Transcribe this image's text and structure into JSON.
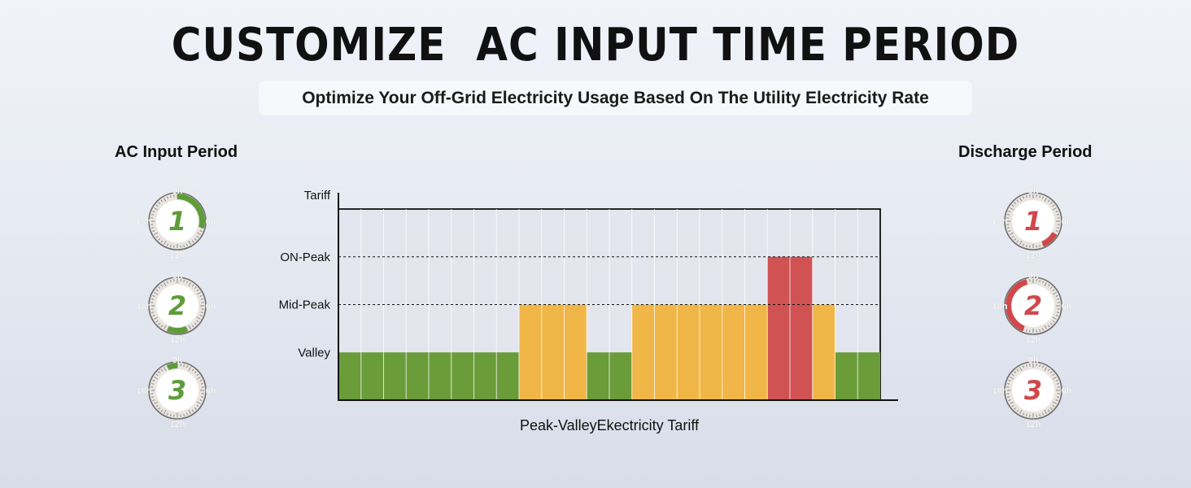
{
  "header": {
    "title": "CUSTOMIZE  AC INPUT TIME PERIOD",
    "subtitle": "Optimize Your Off-Grid Electricity Usage Based On The Utility Electricity Rate"
  },
  "left_panel": {
    "title": "AC Input Period",
    "color": "#5e9c3a",
    "dials": [
      {
        "number": "1",
        "labels": [
          "0h",
          "6h",
          "12h",
          "18h"
        ],
        "arc_hours": [
          0,
          7
        ]
      },
      {
        "number": "2",
        "labels": [
          "0h",
          "6h",
          "12h",
          "18h"
        ],
        "arc_hours": [
          10.5,
          13.5
        ]
      },
      {
        "number": "3",
        "labels": [
          "0h",
          "6h",
          "12h",
          "18h"
        ],
        "arc_hours": [
          22.5,
          24
        ]
      }
    ]
  },
  "right_panel": {
    "title": "Discharge Period",
    "color": "#d0484a",
    "dials": [
      {
        "number": "1",
        "labels": [
          "0h",
          "6h",
          "12h",
          "18h"
        ],
        "arc_hours": [
          8,
          10.5
        ]
      },
      {
        "number": "2",
        "labels": [
          "0h",
          "6h",
          "12h",
          "18h"
        ],
        "arc_hours": [
          13.5,
          23
        ]
      },
      {
        "number": "3",
        "labels": [
          "0h",
          "6h",
          "12h",
          "18h"
        ],
        "arc_hours": [
          0,
          0
        ]
      }
    ]
  },
  "chart_data": {
    "type": "bar",
    "title": "",
    "xlabel": "Peak-ValleyEkectricity Tariff",
    "ylabel": "Tariff",
    "y_levels": [
      {
        "name": "Valley",
        "value": 1
      },
      {
        "name": "Mid-Peak",
        "value": 2
      },
      {
        "name": "ON-Peak",
        "value": 3
      }
    ],
    "ylim": [
      0,
      4
    ],
    "x_units": 24,
    "grid": "vertical",
    "segments": [
      {
        "start": 0,
        "end": 8,
        "level": "Valley",
        "color": "#6a9c3a"
      },
      {
        "start": 8,
        "end": 11,
        "level": "Mid-Peak",
        "color": "#f0b647"
      },
      {
        "start": 11,
        "end": 13,
        "level": "Valley",
        "color": "#6a9c3a"
      },
      {
        "start": 13,
        "end": 19,
        "level": "Mid-Peak",
        "color": "#f0b647"
      },
      {
        "start": 19,
        "end": 21,
        "level": "ON-Peak",
        "color": "#d05252"
      },
      {
        "start": 21,
        "end": 22,
        "level": "Mid-Peak",
        "color": "#f0b647"
      },
      {
        "start": 22,
        "end": 24,
        "level": "Valley",
        "color": "#6a9c3a"
      }
    ]
  }
}
